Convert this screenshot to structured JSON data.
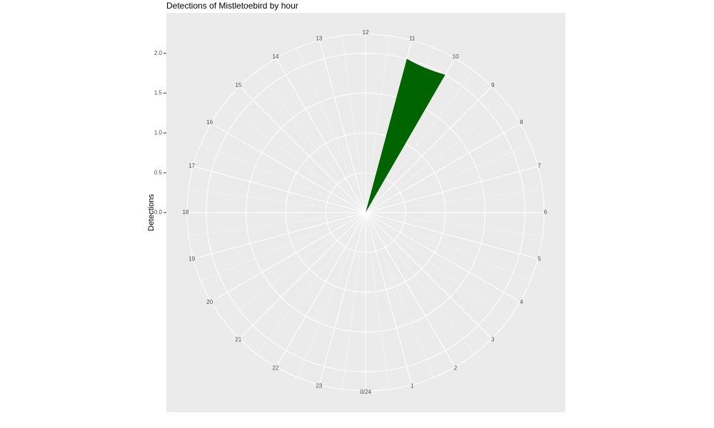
{
  "chart_data": {
    "type": "polar_bar",
    "title": "Detections of Mistletoebird by hour",
    "y_label": "Detections",
    "x": [
      10
    ],
    "values": [
      2
    ],
    "color": "#006400",
    "xlim": [
      0,
      24
    ],
    "xticks": [
      {
        "value": 0,
        "label": "0/24"
      },
      1,
      2,
      3,
      4,
      5,
      6,
      7,
      8,
      9,
      10,
      11,
      12,
      13,
      14,
      15,
      16,
      17,
      18,
      19,
      20,
      21,
      22,
      23
    ],
    "ylim": [
      0,
      2.24
    ],
    "yticks": [
      {
        "value": 0,
        "label": "0.0"
      },
      {
        "value": 0.5,
        "label": "0.5"
      },
      {
        "value": 1,
        "label": "1.0"
      },
      {
        "value": 1.5,
        "label": "1.5"
      },
      {
        "value": 2,
        "label": "2.0"
      }
    ],
    "grid": true
  }
}
